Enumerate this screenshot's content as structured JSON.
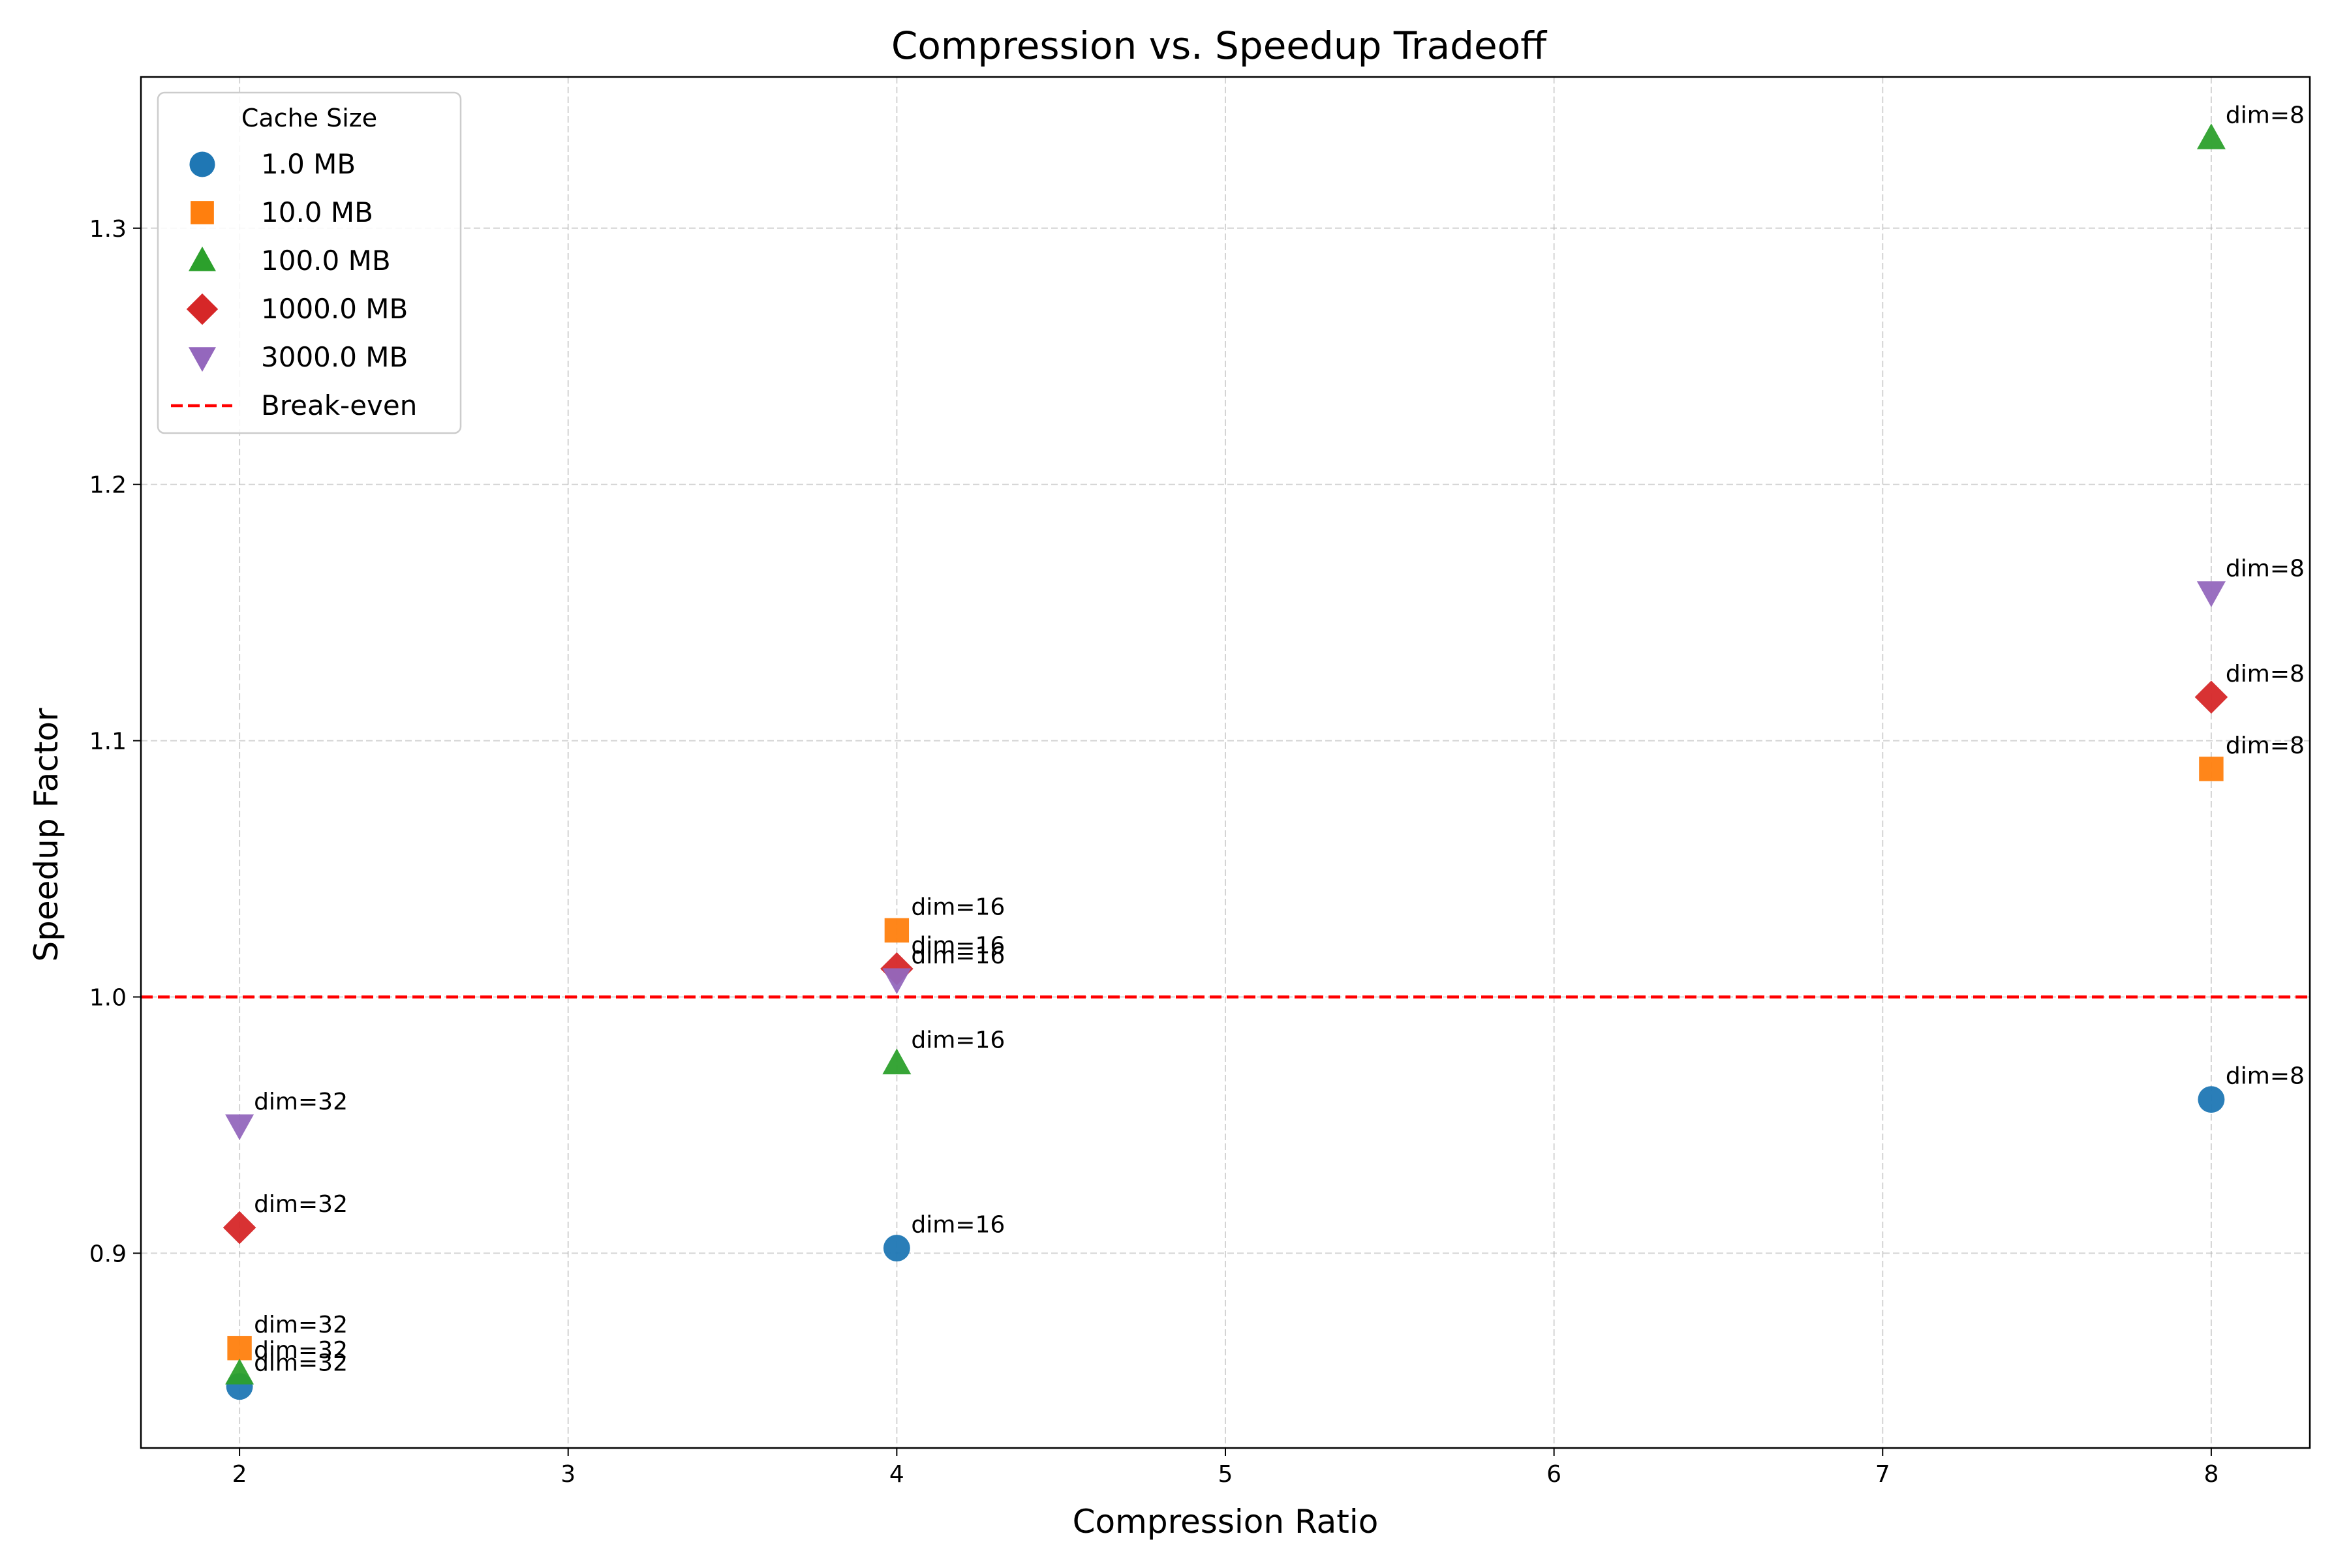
{
  "chart_data": {
    "type": "scatter",
    "title": "Compression vs. Speedup Tradeoff",
    "xlabel": "Compression Ratio",
    "ylabel": "Speedup Factor",
    "xlim": [
      1.7,
      8.3
    ],
    "ylim": [
      0.824,
      1.359
    ],
    "xticks": [
      2,
      3,
      4,
      5,
      6,
      7,
      8
    ],
    "yticks": [
      0.9,
      1.0,
      1.1,
      1.2,
      1.3
    ],
    "xtick_labels": [
      "2",
      "3",
      "4",
      "5",
      "6",
      "7",
      "8"
    ],
    "ytick_labels": [
      "0.9",
      "1.0",
      "1.1",
      "1.2",
      "1.3"
    ],
    "grid": true,
    "legend": {
      "title": "Cache Size",
      "position": "top-left",
      "break_even_label": "Break-even"
    },
    "reference_line": {
      "y": 1.0,
      "color": "#ff0000",
      "style": "dashed",
      "label": "Break-even"
    },
    "series": [
      {
        "name": "1.0 MB",
        "marker": "circle",
        "color": "#1f77b4",
        "points": [
          {
            "x": 2,
            "y": 0.848,
            "label": "dim=32"
          },
          {
            "x": 4,
            "y": 0.902,
            "label": "dim=16"
          },
          {
            "x": 8,
            "y": 0.96,
            "label": "dim=8"
          }
        ]
      },
      {
        "name": "10.0 MB",
        "marker": "square",
        "color": "#ff7f0e",
        "points": [
          {
            "x": 2,
            "y": 0.863,
            "label": "dim=32"
          },
          {
            "x": 4,
            "y": 1.026,
            "label": "dim=16"
          },
          {
            "x": 8,
            "y": 1.089,
            "label": "dim=8"
          }
        ]
      },
      {
        "name": "100.0 MB",
        "marker": "triangle-up",
        "color": "#2ca02c",
        "points": [
          {
            "x": 2,
            "y": 0.853,
            "label": "dim=32"
          },
          {
            "x": 4,
            "y": 0.974,
            "label": "dim=16"
          },
          {
            "x": 8,
            "y": 1.335,
            "label": "dim=8"
          }
        ]
      },
      {
        "name": "1000.0 MB",
        "marker": "diamond",
        "color": "#d62728",
        "points": [
          {
            "x": 2,
            "y": 0.91,
            "label": "dim=32"
          },
          {
            "x": 4,
            "y": 1.011,
            "label": "dim=16"
          },
          {
            "x": 8,
            "y": 1.117,
            "label": "dim=8"
          }
        ]
      },
      {
        "name": "3000.0 MB",
        "marker": "triangle-down",
        "color": "#9467bd",
        "points": [
          {
            "x": 2,
            "y": 0.95,
            "label": "dim=32"
          },
          {
            "x": 4,
            "y": 1.007,
            "label": "dim=16"
          },
          {
            "x": 8,
            "y": 1.158,
            "label": "dim=8"
          }
        ]
      }
    ]
  }
}
